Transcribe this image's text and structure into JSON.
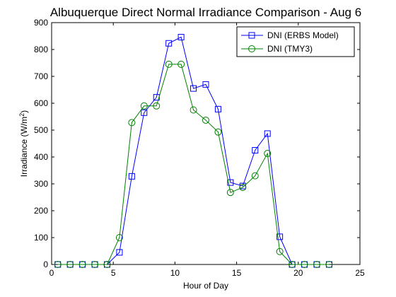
{
  "chart_data": {
    "type": "line",
    "title": "Albuquerque Direct Normal Irradiance Comparison - Aug 6",
    "xlabel": "Hour of Day",
    "ylabel_main": "Irradiance (W/m",
    "ylabel_sup": "2",
    "ylabel_close": ")",
    "xlim": [
      0,
      25
    ],
    "ylim": [
      0,
      900
    ],
    "xticks": [
      0,
      5,
      10,
      15,
      20,
      25
    ],
    "yticks": [
      0,
      100,
      200,
      300,
      400,
      500,
      600,
      700,
      800,
      900
    ],
    "grid": false,
    "legend_position": "top-right",
    "x": [
      0.5,
      1.5,
      2.5,
      3.5,
      4.5,
      5.5,
      6.5,
      7.5,
      8.5,
      9.5,
      10.5,
      11.5,
      12.5,
      13.5,
      14.5,
      15.5,
      16.5,
      17.5,
      18.5,
      19.5,
      20.5,
      21.5,
      22.5
    ],
    "series": [
      {
        "name": "DNI (ERBS Model)",
        "color": "#0000ff",
        "marker": "square",
        "values": [
          0,
          0,
          0,
          0,
          0,
          45,
          328,
          565,
          622,
          823,
          846,
          655,
          670,
          578,
          305,
          292,
          425,
          487,
          103,
          0,
          0,
          0,
          0
        ]
      },
      {
        "name": "DNI (TMY3)",
        "color": "#008000",
        "marker": "circle",
        "values": [
          0,
          0,
          0,
          0,
          0,
          100,
          528,
          590,
          590,
          745,
          745,
          575,
          537,
          493,
          268,
          287,
          330,
          413,
          48,
          0,
          0,
          0,
          0
        ]
      }
    ]
  }
}
